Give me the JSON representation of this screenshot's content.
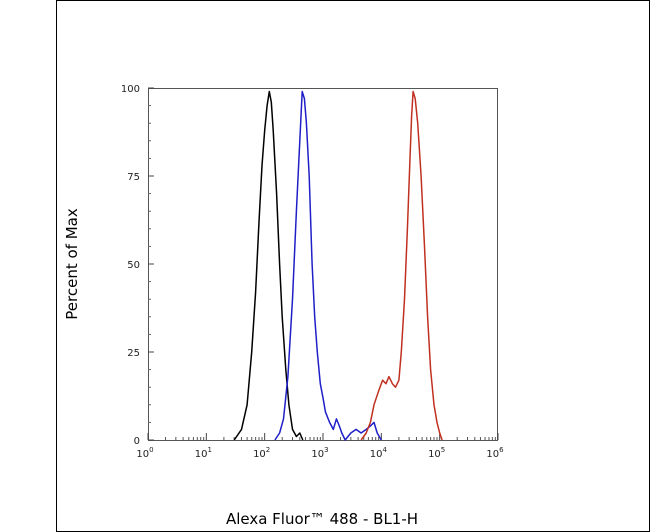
{
  "chart_data": {
    "type": "line",
    "xlabel": "Alexa Fluor™ 488 - BL1-H",
    "ylabel": "Percent of Max",
    "x_scale": "log",
    "xlim": [
      1,
      1000000
    ],
    "ylim": [
      0,
      100
    ],
    "x_ticks": [
      {
        "value": 1,
        "base": "10",
        "exp": "0"
      },
      {
        "value": 10,
        "base": "10",
        "exp": "1"
      },
      {
        "value": 100,
        "base": "10",
        "exp": "2"
      },
      {
        "value": 1000,
        "base": "10",
        "exp": "3"
      },
      {
        "value": 10000,
        "base": "10",
        "exp": "4"
      },
      {
        "value": 100000,
        "base": "10",
        "exp": "5"
      },
      {
        "value": 1000000,
        "base": "10",
        "exp": "6"
      }
    ],
    "y_ticks": [
      "0",
      "25",
      "50",
      "75",
      "100"
    ],
    "grid": false,
    "series": [
      {
        "color": "#000000",
        "points": [
          [
            30,
            0
          ],
          [
            40,
            3
          ],
          [
            50,
            10
          ],
          [
            60,
            25
          ],
          [
            70,
            42
          ],
          [
            80,
            62
          ],
          [
            90,
            78
          ],
          [
            100,
            88
          ],
          [
            110,
            95
          ],
          [
            120,
            99
          ],
          [
            130,
            96
          ],
          [
            140,
            88
          ],
          [
            160,
            70
          ],
          [
            180,
            50
          ],
          [
            200,
            35
          ],
          [
            230,
            20
          ],
          [
            260,
            10
          ],
          [
            300,
            3
          ],
          [
            350,
            1
          ],
          [
            400,
            2
          ],
          [
            450,
            0
          ]
        ]
      },
      {
        "color": "#1f1fc8",
        "points": [
          [
            150,
            0
          ],
          [
            180,
            2
          ],
          [
            210,
            6
          ],
          [
            250,
            18
          ],
          [
            300,
            40
          ],
          [
            350,
            65
          ],
          [
            400,
            85
          ],
          [
            440,
            99
          ],
          [
            480,
            97
          ],
          [
            520,
            90
          ],
          [
            580,
            75
          ],
          [
            650,
            50
          ],
          [
            720,
            35
          ],
          [
            800,
            25
          ],
          [
            900,
            16
          ],
          [
            1000,
            12
          ],
          [
            1100,
            8
          ],
          [
            1300,
            5
          ],
          [
            1500,
            3
          ],
          [
            1700,
            6
          ],
          [
            1900,
            4
          ],
          [
            2100,
            2
          ],
          [
            2400,
            0
          ],
          [
            3000,
            2
          ],
          [
            3700,
            3
          ],
          [
            4500,
            2
          ],
          [
            5500,
            3
          ],
          [
            6500,
            4
          ],
          [
            7500,
            5
          ],
          [
            8500,
            2
          ],
          [
            10000,
            0
          ]
        ]
      },
      {
        "color": "#c03020",
        "points": [
          [
            4500,
            0
          ],
          [
            5500,
            2
          ],
          [
            6500,
            5
          ],
          [
            7500,
            10
          ],
          [
            9000,
            14
          ],
          [
            10500,
            17
          ],
          [
            12000,
            16
          ],
          [
            13500,
            18
          ],
          [
            15500,
            16
          ],
          [
            17500,
            15
          ],
          [
            20000,
            17
          ],
          [
            22000,
            25
          ],
          [
            25000,
            40
          ],
          [
            28000,
            60
          ],
          [
            31000,
            80
          ],
          [
            33000,
            92
          ],
          [
            35000,
            99
          ],
          [
            38000,
            97
          ],
          [
            42000,
            90
          ],
          [
            48000,
            75
          ],
          [
            55000,
            55
          ],
          [
            62000,
            35
          ],
          [
            70000,
            20
          ],
          [
            80000,
            10
          ],
          [
            90000,
            5
          ],
          [
            100000,
            2
          ],
          [
            110000,
            0
          ]
        ]
      }
    ]
  }
}
